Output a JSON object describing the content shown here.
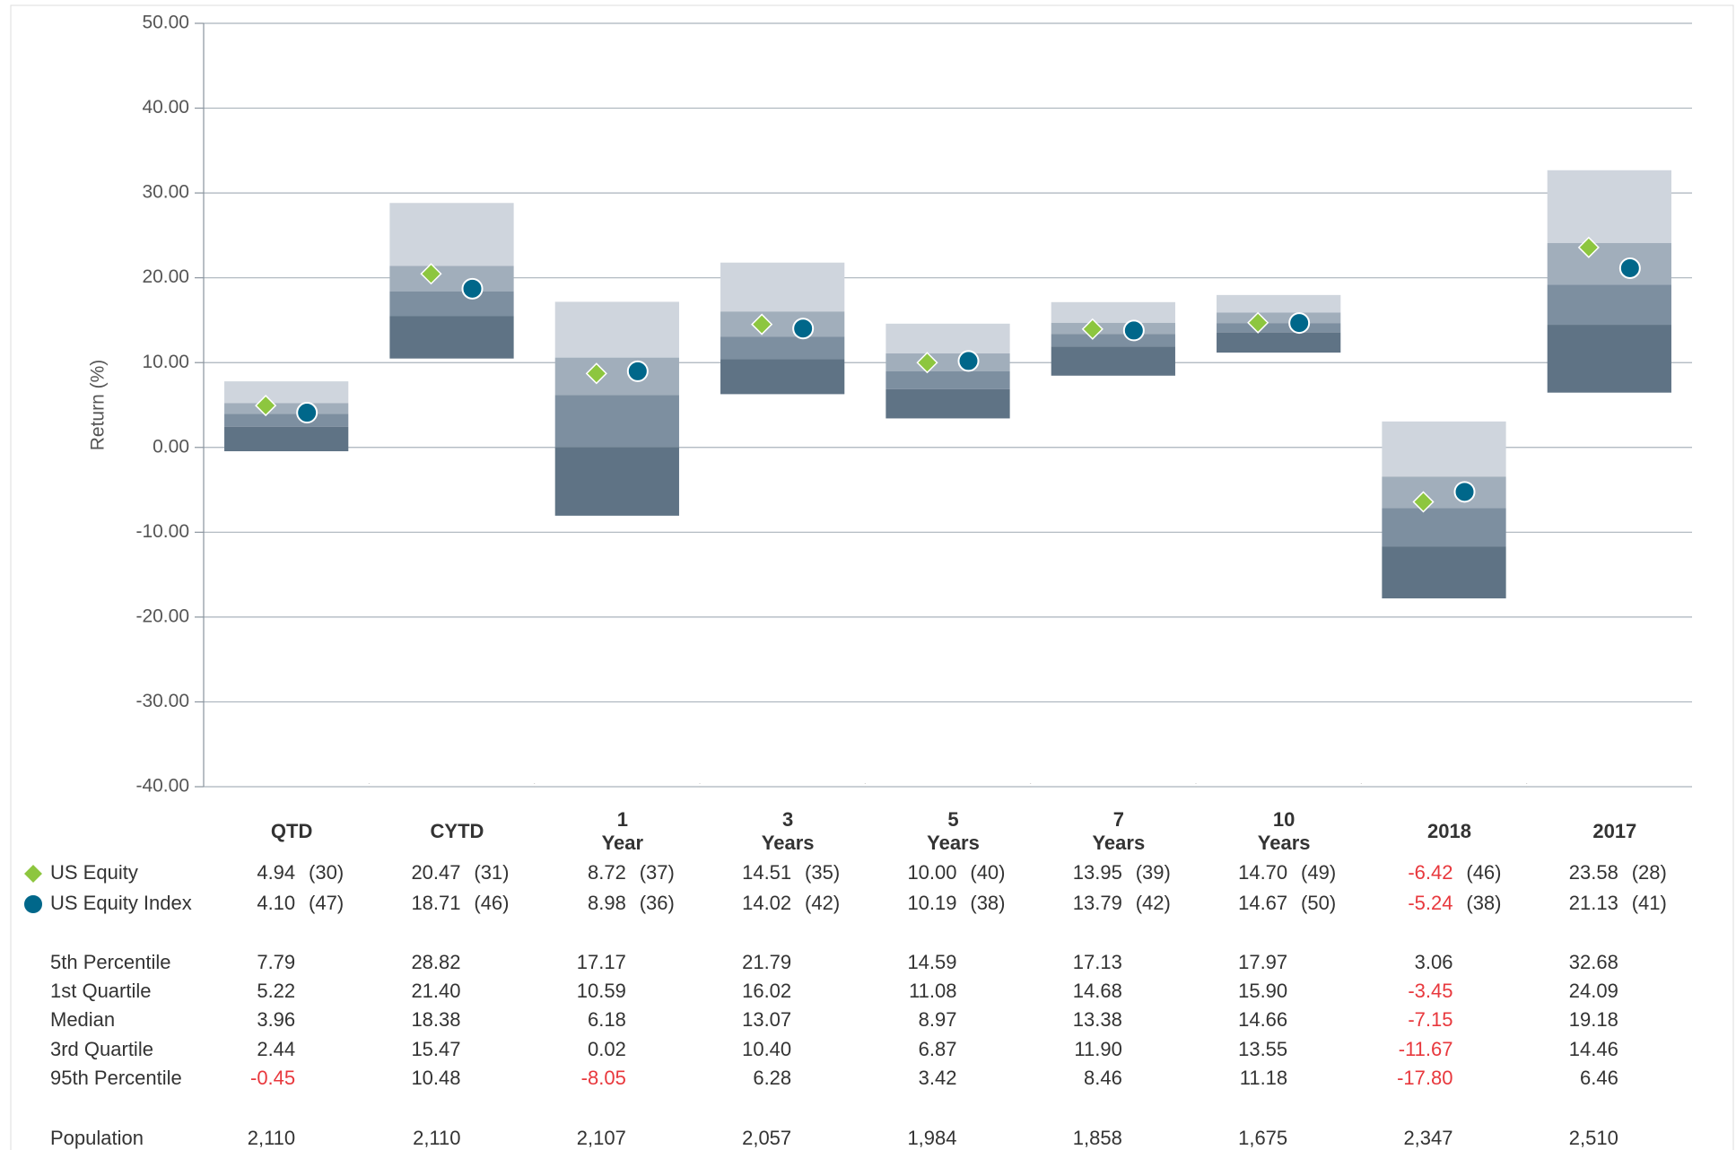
{
  "chart_data": {
    "type": "percentile-range",
    "y_label": "Return (%)",
    "ylim": [
      -40,
      50
    ],
    "yticks": [
      {
        "value": -40,
        "label": "-40.00"
      },
      {
        "value": -30,
        "label": "-30.00"
      },
      {
        "value": -20,
        "label": "-20.00"
      },
      {
        "value": -10,
        "label": "-10.00"
      },
      {
        "value": 0,
        "label": "0.00"
      },
      {
        "value": 10,
        "label": "10.00"
      },
      {
        "value": 20,
        "label": "20.00"
      },
      {
        "value": 30,
        "label": "30.00"
      },
      {
        "value": 40,
        "label": "40.00"
      },
      {
        "value": 50,
        "label": "50.00"
      }
    ],
    "grid": true,
    "categories": [
      "QTD",
      "CYTD",
      "1\nYear",
      "3\nYears",
      "5\nYears",
      "7\nYears",
      "10\nYears",
      "2018",
      "2017"
    ],
    "negative_color": "#e8383d",
    "band_colors": [
      "#cfd5dd",
      "#a1aebb",
      "#7d8fa0",
      "#5f7385"
    ],
    "series": [
      {
        "name": "US Equity",
        "color": "#8dc63f",
        "marker": "diamond",
        "values": [
          4.94,
          20.47,
          8.72,
          14.51,
          10.0,
          13.95,
          14.7,
          -6.42,
          23.58
        ],
        "value_labels": [
          "4.94",
          "20.47",
          "8.72",
          "14.51",
          "10.00",
          "13.95",
          "14.70",
          "-6.42",
          "23.58"
        ],
        "rank_labels": [
          "(30)",
          "(31)",
          "(37)",
          "(35)",
          "(40)",
          "(39)",
          "(49)",
          "(46)",
          "(28)"
        ]
      },
      {
        "name": "US Equity Index",
        "color": "#00678a",
        "marker": "circle",
        "values": [
          4.1,
          18.71,
          8.98,
          14.02,
          10.19,
          13.79,
          14.67,
          -5.24,
          21.13
        ],
        "value_labels": [
          "4.10",
          "18.71",
          "8.98",
          "14.02",
          "10.19",
          "13.79",
          "14.67",
          "-5.24",
          "21.13"
        ],
        "rank_labels": [
          "(47)",
          "(46)",
          "(36)",
          "(42)",
          "(38)",
          "(42)",
          "(50)",
          "(38)",
          "(41)"
        ]
      }
    ],
    "percentiles": [
      {
        "name": "5th Percentile",
        "values": [
          7.79,
          28.82,
          17.17,
          21.79,
          14.59,
          17.13,
          17.97,
          3.06,
          32.68
        ],
        "value_labels": [
          "7.79",
          "28.82",
          "17.17",
          "21.79",
          "14.59",
          "17.13",
          "17.97",
          "3.06",
          "32.68"
        ]
      },
      {
        "name": "1st Quartile",
        "values": [
          5.22,
          21.4,
          10.59,
          16.02,
          11.08,
          14.68,
          15.9,
          -3.45,
          24.09
        ],
        "value_labels": [
          "5.22",
          "21.40",
          "10.59",
          "16.02",
          "11.08",
          "14.68",
          "15.90",
          "-3.45",
          "24.09"
        ]
      },
      {
        "name": "Median",
        "values": [
          3.96,
          18.38,
          6.18,
          13.07,
          8.97,
          13.38,
          14.66,
          -7.15,
          19.18
        ],
        "value_labels": [
          "3.96",
          "18.38",
          "6.18",
          "13.07",
          "8.97",
          "13.38",
          "14.66",
          "-7.15",
          "19.18"
        ]
      },
      {
        "name": "3rd Quartile",
        "values": [
          2.44,
          15.47,
          0.02,
          10.4,
          6.87,
          11.9,
          13.55,
          -11.67,
          14.46
        ],
        "value_labels": [
          "2.44",
          "15.47",
          "0.02",
          "10.40",
          "6.87",
          "11.90",
          "13.55",
          "-11.67",
          "14.46"
        ]
      },
      {
        "name": "95th Percentile",
        "values": [
          -0.45,
          10.48,
          -8.05,
          6.28,
          3.42,
          8.46,
          11.18,
          -17.8,
          6.46
        ],
        "value_labels": [
          "-0.45",
          "10.48",
          "-8.05",
          "6.28",
          "3.42",
          "8.46",
          "11.18",
          "-17.80",
          "6.46"
        ]
      }
    ],
    "population_label": "Population",
    "population": [
      "2,110",
      "2,110",
      "2,107",
      "2,057",
      "1,984",
      "1,858",
      "1,675",
      "2,347",
      "2,510"
    ]
  }
}
